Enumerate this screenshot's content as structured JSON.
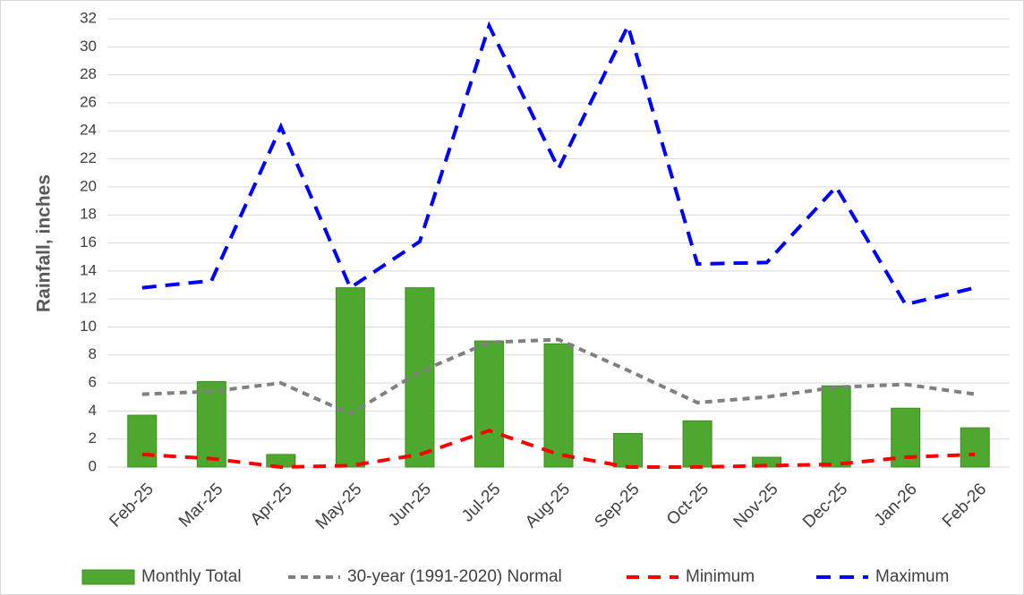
{
  "chart_data": {
    "type": "bar_line",
    "y_label": "Rainfall, inches",
    "categories": [
      "Feb-25",
      "Mar-25",
      "Apr-25",
      "May-25",
      "Jun-25",
      "Jul-25",
      "Aug-25",
      "Sep-25",
      "Oct-25",
      "Nov-25",
      "Dec-25",
      "Jan-26",
      "Feb-26"
    ],
    "series": [
      {
        "name": "Monthly Total",
        "kind": "bar",
        "color": "#4ea72e",
        "values": [
          3.7,
          6.1,
          0.9,
          12.8,
          12.8,
          9.0,
          8.8,
          2.4,
          3.3,
          0.7,
          5.8,
          4.2,
          2.8
        ]
      },
      {
        "name": "30-year (1991-2020) Normal",
        "kind": "line",
        "color": "#808080",
        "values": [
          5.2,
          5.4,
          6.0,
          3.8,
          6.8,
          8.9,
          9.1,
          6.9,
          4.6,
          5.0,
          5.7,
          5.9,
          5.2
        ]
      },
      {
        "name": "Minimum",
        "kind": "line",
        "color": "#ff0000",
        "values": [
          0.9,
          0.6,
          0.0,
          0.1,
          0.9,
          2.6,
          0.9,
          0.0,
          0.0,
          0.1,
          0.2,
          0.7,
          0.9
        ]
      },
      {
        "name": "Maximum",
        "kind": "line",
        "color": "#0000ff",
        "values": [
          12.8,
          13.3,
          24.3,
          12.8,
          16.1,
          31.5,
          21.3,
          31.5,
          14.5,
          14.6,
          20.0,
          11.6,
          12.8
        ]
      }
    ],
    "ylim": [
      0,
      32
    ],
    "yticks": [
      0,
      2,
      4,
      6,
      8,
      10,
      12,
      14,
      16,
      18,
      20,
      22,
      24,
      26,
      28,
      30,
      32
    ],
    "grid": true
  }
}
